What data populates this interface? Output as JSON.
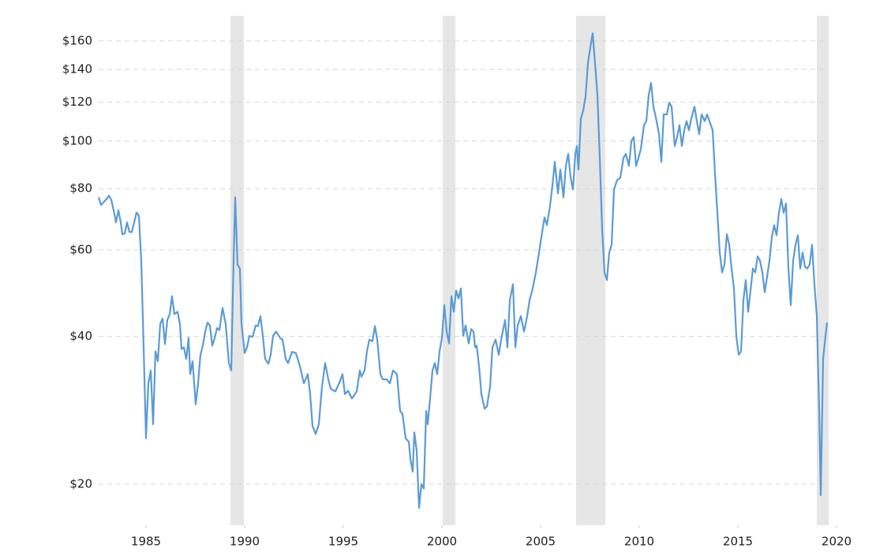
{
  "chart_data": {
    "type": "line",
    "log_scale": true,
    "grid": true,
    "color": "#5b9bd5",
    "band_color": "#e6e6e6",
    "x": [
      1982.6,
      1982.72,
      1983.0,
      1983.12,
      1983.24,
      1983.36,
      1983.48,
      1983.6,
      1983.72,
      1983.8,
      1983.92,
      1984.04,
      1984.16,
      1984.28,
      1984.4,
      1984.52,
      1984.64,
      1984.76,
      1984.88,
      1985.0,
      1985.12,
      1985.24,
      1985.36,
      1985.48,
      1985.6,
      1985.72,
      1985.84,
      1985.96,
      1986.08,
      1986.2,
      1986.32,
      1986.44,
      1986.6,
      1986.72,
      1986.8,
      1986.92,
      1987.04,
      1987.16,
      1987.24,
      1987.36,
      1987.52,
      1987.64,
      1987.76,
      1987.88,
      1988.0,
      1988.12,
      1988.24,
      1988.36,
      1988.48,
      1988.6,
      1988.72,
      1988.88,
      1989.04,
      1989.2,
      1989.32,
      1989.44,
      1989.52,
      1989.64,
      1989.76,
      1989.84,
      1990.0,
      1990.12,
      1990.24,
      1990.4,
      1990.56,
      1990.68,
      1990.8,
      1990.92,
      1991.04,
      1991.2,
      1991.32,
      1991.44,
      1991.6,
      1991.8,
      1991.92,
      1992.08,
      1992.2,
      1992.4,
      1992.6,
      1992.8,
      1993.0,
      1993.2,
      1993.32,
      1993.44,
      1993.6,
      1993.76,
      1993.92,
      1994.08,
      1994.24,
      1994.36,
      1994.6,
      1994.8,
      1994.96,
      1995.08,
      1995.24,
      1995.44,
      1995.68,
      1995.84,
      1995.92,
      1996.08,
      1996.2,
      1996.32,
      1996.48,
      1996.6,
      1996.72,
      1996.88,
      1997.0,
      1997.2,
      1997.36,
      1997.52,
      1997.72,
      1997.88,
      1998.0,
      1998.16,
      1998.32,
      1998.4,
      1998.52,
      1998.6,
      1998.72,
      1998.84,
      1998.96,
      1999.08,
      1999.2,
      1999.28,
      1999.4,
      1999.52,
      1999.64,
      1999.76,
      1999.88,
      2000.0,
      2000.12,
      2000.24,
      2000.36,
      2000.48,
      2000.6,
      2000.72,
      2000.84,
      2000.96,
      2001.08,
      2001.2,
      2001.36,
      2001.48,
      2001.6,
      2001.68,
      2001.76,
      2001.88,
      2002.0,
      2002.16,
      2002.28,
      2002.44,
      2002.56,
      2002.72,
      2002.88,
      2003.0,
      2003.2,
      2003.32,
      2003.44,
      2003.6,
      2003.72,
      2003.84,
      2004.0,
      2004.16,
      2004.32,
      2004.44,
      2004.6,
      2004.76,
      2004.92,
      2005.04,
      2005.2,
      2005.32,
      2005.48,
      2005.6,
      2005.72,
      2005.88,
      2006.0,
      2006.16,
      2006.28,
      2006.4,
      2006.52,
      2006.64,
      2006.76,
      2006.84,
      2006.92,
      2007.04,
      2007.16,
      2007.28,
      2007.4,
      2007.52,
      2007.64,
      2007.76,
      2007.88,
      2008.0,
      2008.12,
      2008.24,
      2008.36,
      2008.48,
      2008.6,
      2008.72,
      2008.88,
      2009.04,
      2009.2,
      2009.32,
      2009.48,
      2009.6,
      2009.72,
      2009.84,
      2009.96,
      2010.08,
      2010.24,
      2010.36,
      2010.48,
      2010.6,
      2010.72,
      2010.88,
      2011.0,
      2011.12,
      2011.24,
      2011.4,
      2011.52,
      2011.64,
      2011.8,
      2011.92,
      2012.04,
      2012.16,
      2012.28,
      2012.4,
      2012.52,
      2012.64,
      2012.8,
      2012.92,
      2013.04,
      2013.16,
      2013.32,
      2013.44,
      2013.56,
      2013.72,
      2013.84,
      2013.96,
      2014.08,
      2014.2,
      2014.32,
      2014.44,
      2014.56,
      2014.68,
      2014.8,
      2014.92,
      2015.04,
      2015.16,
      2015.28,
      2015.4,
      2015.52,
      2015.64,
      2015.76,
      2015.88,
      2016.0,
      2016.12,
      2016.24,
      2016.36,
      2016.48,
      2016.6,
      2016.72,
      2016.84,
      2016.96,
      2017.08,
      2017.2,
      2017.32,
      2017.44,
      2017.56,
      2017.68,
      2017.8,
      2017.92,
      2018.04,
      2018.16,
      2018.28,
      2018.4,
      2018.52,
      2018.64,
      2018.76,
      2018.88,
      2019.0,
      2019.12,
      2019.2,
      2019.32,
      2019.44,
      2019.52
    ],
    "values": [
      76.8,
      74.1,
      76.2,
      77.4,
      75.9,
      72.3,
      68.3,
      72.3,
      68.3,
      64.6,
      64.8,
      68.3,
      65.3,
      65.3,
      68.3,
      71.5,
      70.5,
      57.1,
      38.0,
      24.8,
      32.1,
      34.1,
      26.5,
      37.3,
      35.6,
      42.4,
      43.5,
      38.6,
      43.2,
      44.4,
      48.3,
      44.4,
      44.9,
      42.4,
      37.7,
      38.0,
      36.0,
      39.7,
      33.5,
      35.6,
      29.1,
      32.1,
      36.7,
      38.3,
      40.9,
      42.7,
      42.1,
      38.3,
      39.7,
      41.6,
      41.2,
      45.7,
      42.4,
      35.3,
      34.1,
      57.1,
      76.8,
      56.0,
      55.0,
      42.4,
      37.0,
      38.0,
      40.1,
      39.9,
      42.1,
      42.0,
      44.0,
      40.1,
      36.0,
      35.2,
      36.7,
      40.1,
      40.9,
      39.7,
      39.4,
      36.0,
      35.3,
      37.2,
      37.0,
      34.8,
      32.1,
      33.5,
      30.5,
      26.3,
      25.3,
      26.5,
      31.6,
      35.3,
      32.7,
      31.3,
      30.9,
      32.2,
      33.5,
      30.5,
      31.0,
      29.9,
      30.9,
      34.1,
      33.1,
      34.1,
      37.3,
      39.4,
      39.1,
      42.0,
      39.4,
      33.5,
      32.7,
      32.7,
      32.1,
      34.1,
      33.5,
      28.2,
      27.8,
      24.8,
      24.4,
      22.5,
      21.2,
      25.5,
      23.4,
      17.9,
      20.0,
      19.6,
      28.2,
      26.5,
      29.9,
      34.1,
      35.3,
      33.5,
      37.3,
      39.7,
      46.3,
      40.9,
      38.7,
      48.3,
      44.9,
      49.6,
      47.8,
      50.1,
      40.1,
      42.1,
      38.7,
      41.4,
      40.9,
      38.0,
      38.3,
      34.8,
      30.5,
      28.5,
      28.8,
      31.6,
      38.0,
      39.4,
      36.7,
      39.4,
      43.2,
      38.0,
      47.4,
      51.1,
      38.0,
      42.1,
      44.0,
      40.9,
      44.0,
      47.4,
      50.1,
      54.0,
      59.2,
      63.8,
      69.9,
      67.4,
      73.9,
      81.2,
      90.7,
      78.2,
      87.5,
      76.8,
      89.0,
      94.2,
      84.2,
      79.7,
      94.2,
      97.7,
      87.5,
      111.2,
      115.4,
      123.4,
      144.0,
      155.2,
      165.8,
      144.0,
      124.2,
      92.4,
      66.2,
      54.0,
      52.1,
      59.3,
      61.5,
      79.7,
      83.3,
      84.2,
      92.4,
      94.2,
      89.0,
      100,
      101.9,
      89.0,
      92.4,
      96.3,
      107.8,
      109.8,
      124.2,
      131.4,
      117.5,
      109.8,
      103.3,
      90.7,
      113.3,
      113.3,
      119.8,
      117.5,
      97.7,
      101.9,
      107.8,
      97.7,
      105.2,
      109.8,
      105.2,
      111.2,
      117.5,
      109.8,
      103.3,
      113.3,
      109.8,
      113.3,
      109.8,
      105.2,
      85.8,
      71.4,
      59.3,
      54.0,
      56.1,
      64.6,
      61.5,
      55.0,
      50.1,
      40.1,
      36.7,
      37.3,
      47.4,
      52.1,
      44.9,
      49.6,
      55.0,
      54.0,
      58.2,
      57.1,
      54.0,
      49.2,
      52.9,
      57.1,
      63.8,
      67.4,
      64.3,
      71.4,
      76.2,
      71.4,
      74.6,
      55.0,
      46.3,
      57.1,
      61.5,
      64.3,
      55.0,
      59.3,
      55.4,
      55.0,
      56.1,
      61.5,
      51.1,
      44.0,
      28.2,
      19.0,
      36.0,
      40.1,
      42.7
    ],
    "recessions": [
      [
        1989.28,
        1989.96
      ],
      [
        2000.04,
        2000.68
      ],
      [
        2006.8,
        2008.28
      ],
      [
        2019.0,
        2019.6
      ]
    ],
    "xlim": [
      1982.6,
      2020
    ],
    "ylim": [
      16.5,
      180
    ],
    "xticks": [
      1985,
      1990,
      1995,
      2000,
      2005,
      2010,
      2015,
      2020
    ],
    "yticks": [
      {
        "value": 20,
        "label": "$20"
      },
      {
        "value": 40,
        "label": "$40"
      },
      {
        "value": 60,
        "label": "$60"
      },
      {
        "value": 80,
        "label": "$80"
      },
      {
        "value": 100,
        "label": "$100"
      },
      {
        "value": 120,
        "label": "$120"
      },
      {
        "value": 140,
        "label": "$140"
      },
      {
        "value": 160,
        "label": "$160"
      }
    ]
  }
}
